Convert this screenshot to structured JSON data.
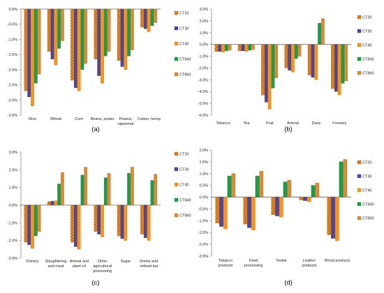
{
  "chart_data": [
    {
      "type": "bar",
      "panel_label": "(a)",
      "categories": [
        "Rice",
        "Wheat",
        "Corn",
        "Beans, potato",
        "Peanut, rapeseed",
        "Cotton, hemp"
      ],
      "ylim": [
        -3.5,
        0.0
      ],
      "yticks": [
        0.0,
        -0.5,
        -1.0,
        -1.5,
        -2.0,
        -2.5,
        -3.0,
        -3.5
      ],
      "legend_position": "right",
      "series": [
        {
          "name": "CT20",
          "values": [
            -2.7,
            -1.4,
            -2.35,
            -1.65,
            -1.7,
            -0.6
          ]
        },
        {
          "name": "CT30",
          "values": [
            -2.9,
            -1.65,
            -2.6,
            -2.2,
            -1.9,
            -0.65
          ]
        },
        {
          "name": "CT40",
          "values": [
            -3.2,
            -1.85,
            -2.7,
            -2.45,
            -2.0,
            -0.75
          ]
        },
        {
          "name": "CT840",
          "values": [
            -2.45,
            -1.3,
            -2.0,
            -1.55,
            -1.55,
            -0.55
          ]
        },
        {
          "name": "CT860",
          "values": [
            -2.15,
            -1.05,
            -1.8,
            -1.4,
            -1.35,
            -0.45
          ]
        }
      ]
    },
    {
      "type": "bar",
      "panel_label": "(b)",
      "categories": [
        "Tobacco",
        "Tea",
        "Fruit",
        "Animal",
        "Dairy",
        "Forestry"
      ],
      "ylim": [
        -6.0,
        3.0
      ],
      "yticks": [
        3.0,
        2.0,
        1.0,
        0.0,
        -1.0,
        -2.0,
        -3.0,
        -4.0,
        -5.0,
        -6.0
      ],
      "legend_position": "right",
      "series": [
        {
          "name": "CT20",
          "values": [
            -0.6,
            -0.55,
            -4.3,
            -2.0,
            -2.6,
            -3.75
          ]
        },
        {
          "name": "CT30",
          "values": [
            -0.6,
            -0.55,
            -4.9,
            -2.2,
            -2.8,
            -4.0
          ]
        },
        {
          "name": "CT40",
          "values": [
            -0.65,
            -0.6,
            -5.5,
            -2.35,
            -3.0,
            -4.3
          ]
        },
        {
          "name": "CT840",
          "values": [
            -0.55,
            -0.5,
            -3.7,
            -1.2,
            1.8,
            -3.3
          ]
        },
        {
          "name": "CT860",
          "values": [
            -0.5,
            -0.45,
            -2.85,
            -1.0,
            2.2,
            -3.1
          ]
        }
      ]
    },
    {
      "type": "bar",
      "panel_label": "(c)",
      "categories": [
        "Fishery",
        "Slaughtering and meat",
        "Animal and plant oil",
        "Other agricultural processing",
        "Sugar",
        "Drinks and refined tea"
      ],
      "ylim": [
        -3.0,
        3.0
      ],
      "yticks": [
        3.0,
        2.0,
        1.0,
        0.0,
        -1.0,
        -2.0,
        -3.0
      ],
      "legend_position": "right",
      "series": [
        {
          "name": "CT20",
          "values": [
            -2.1,
            0.2,
            -2.1,
            -1.5,
            -1.75,
            -1.65
          ]
        },
        {
          "name": "CT30",
          "values": [
            -2.25,
            0.22,
            -2.35,
            -1.65,
            -1.9,
            -1.85
          ]
        },
        {
          "name": "CT40",
          "values": [
            -2.45,
            0.25,
            -2.5,
            -1.8,
            -2.0,
            -2.0
          ]
        },
        {
          "name": "CT840",
          "values": [
            -1.75,
            1.2,
            1.7,
            1.55,
            1.8,
            1.4
          ]
        },
        {
          "name": "CT860",
          "values": [
            -1.5,
            1.85,
            2.15,
            1.8,
            2.15,
            1.75
          ]
        }
      ]
    },
    {
      "type": "bar",
      "panel_label": "(d)",
      "categories": [
        "Tobacco products",
        "Feed processing",
        "Textile",
        "Leather products",
        "Wood products"
      ],
      "ylim": [
        -2.5,
        2.0
      ],
      "yticks": [
        2.0,
        1.5,
        1.0,
        0.5,
        0.0,
        -0.5,
        -1.0,
        -1.5,
        -2.0,
        -2.5
      ],
      "legend_position": "right",
      "series": [
        {
          "name": "CT20",
          "values": [
            -1.1,
            -1.15,
            -0.75,
            -0.12,
            -1.6
          ]
        },
        {
          "name": "CT30",
          "values": [
            -1.25,
            -1.3,
            -0.8,
            -0.15,
            -1.75
          ]
        },
        {
          "name": "CT40",
          "values": [
            -1.35,
            -1.4,
            -0.85,
            -0.2,
            -1.85
          ]
        },
        {
          "name": "CT840",
          "values": [
            0.9,
            0.9,
            0.65,
            0.5,
            1.5
          ]
        },
        {
          "name": "CT860",
          "values": [
            1.0,
            1.1,
            0.72,
            0.6,
            1.6
          ]
        }
      ]
    }
  ],
  "series_colors": {
    "CT20": "#F28A1C",
    "CT30": "#5B4B9B",
    "CT40": "#F7941D",
    "CT840": "#1FA84F",
    "CT860": "#D98C35"
  }
}
